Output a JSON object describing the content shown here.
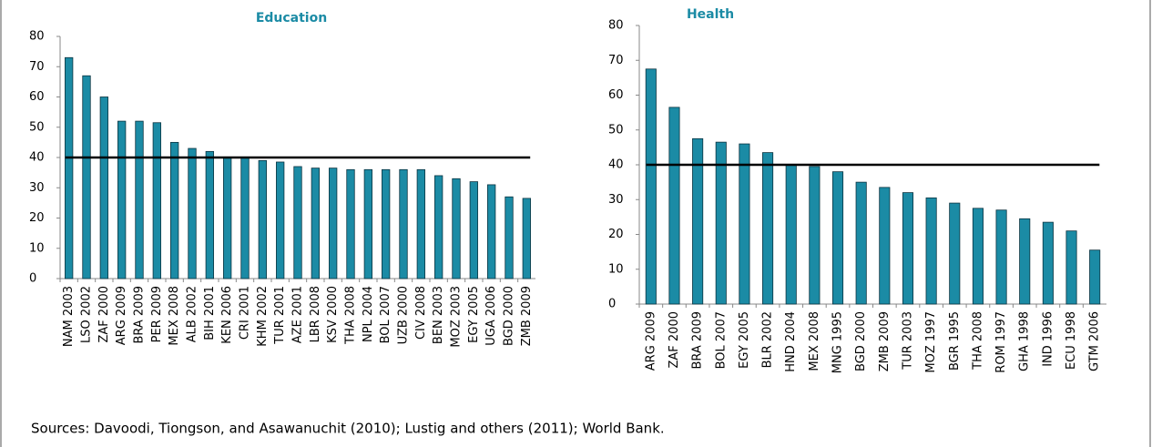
{
  "chart_data": [
    {
      "type": "bar",
      "title": "Education",
      "categories": [
        "NAM 2003",
        "LSO 2002",
        "ZAF 2000",
        "ARG 2009",
        "BRA 2009",
        "PER 2009",
        "MEX 2008",
        "ALB 2002",
        "BIH 2001",
        "KEN 2006",
        "CRI 2001",
        "KHM 2002",
        "TUR 2001",
        "AZE 2001",
        "LBR 2008",
        "KSV 2000",
        "THA 2008",
        "NPL 2004",
        "BOL 2007",
        "UZB 2000",
        "CIV 2008",
        "BEN 2003",
        "MOZ 2003",
        "EGY 2005",
        "UGA 2006",
        "BGD 2000",
        "ZMB 2009"
      ],
      "values": [
        73,
        67,
        60,
        52,
        52,
        51.5,
        45,
        43,
        42,
        40,
        40,
        39,
        38.5,
        37,
        36.5,
        36.5,
        36,
        36,
        36,
        36,
        36,
        34,
        33,
        32,
        31,
        27,
        26.5
      ],
      "color": "#1b8ba5",
      "reference_line": 40,
      "ylim": [
        0,
        80
      ],
      "yticks": [
        0,
        10,
        20,
        30,
        40,
        50,
        60,
        70,
        80
      ]
    },
    {
      "type": "bar",
      "title": "Health",
      "categories": [
        "ARG 2009",
        "ZAF 2000",
        "BRA 2009",
        "BOL 2007",
        "EGY 2005",
        "BLR 2002",
        "HND 2004",
        "MEX 2008",
        "MNG 1995",
        "BGD 2000",
        "ZMB 2009",
        "TUR 2003",
        "MOZ 1997",
        "BGR 1995",
        "THA 2008",
        "ROM 1997",
        "GHA 1998",
        "IND 1996",
        "ECU 1998",
        "GTM 2006"
      ],
      "values": [
        67.5,
        56.5,
        47.5,
        46.5,
        46,
        43.5,
        40,
        39.5,
        38,
        35,
        33.5,
        32,
        30.5,
        29,
        27.5,
        27,
        24.5,
        23.5,
        21,
        15.5
      ],
      "color": "#1b8ba5",
      "reference_line": 40,
      "ylim": [
        0,
        80
      ],
      "yticks": [
        0,
        10,
        20,
        30,
        40,
        50,
        60,
        70,
        80
      ]
    }
  ],
  "source": "Sources: Davoodi, Tiongson, and Asawanuchit (2010); Lustig and others (2011); World Bank."
}
